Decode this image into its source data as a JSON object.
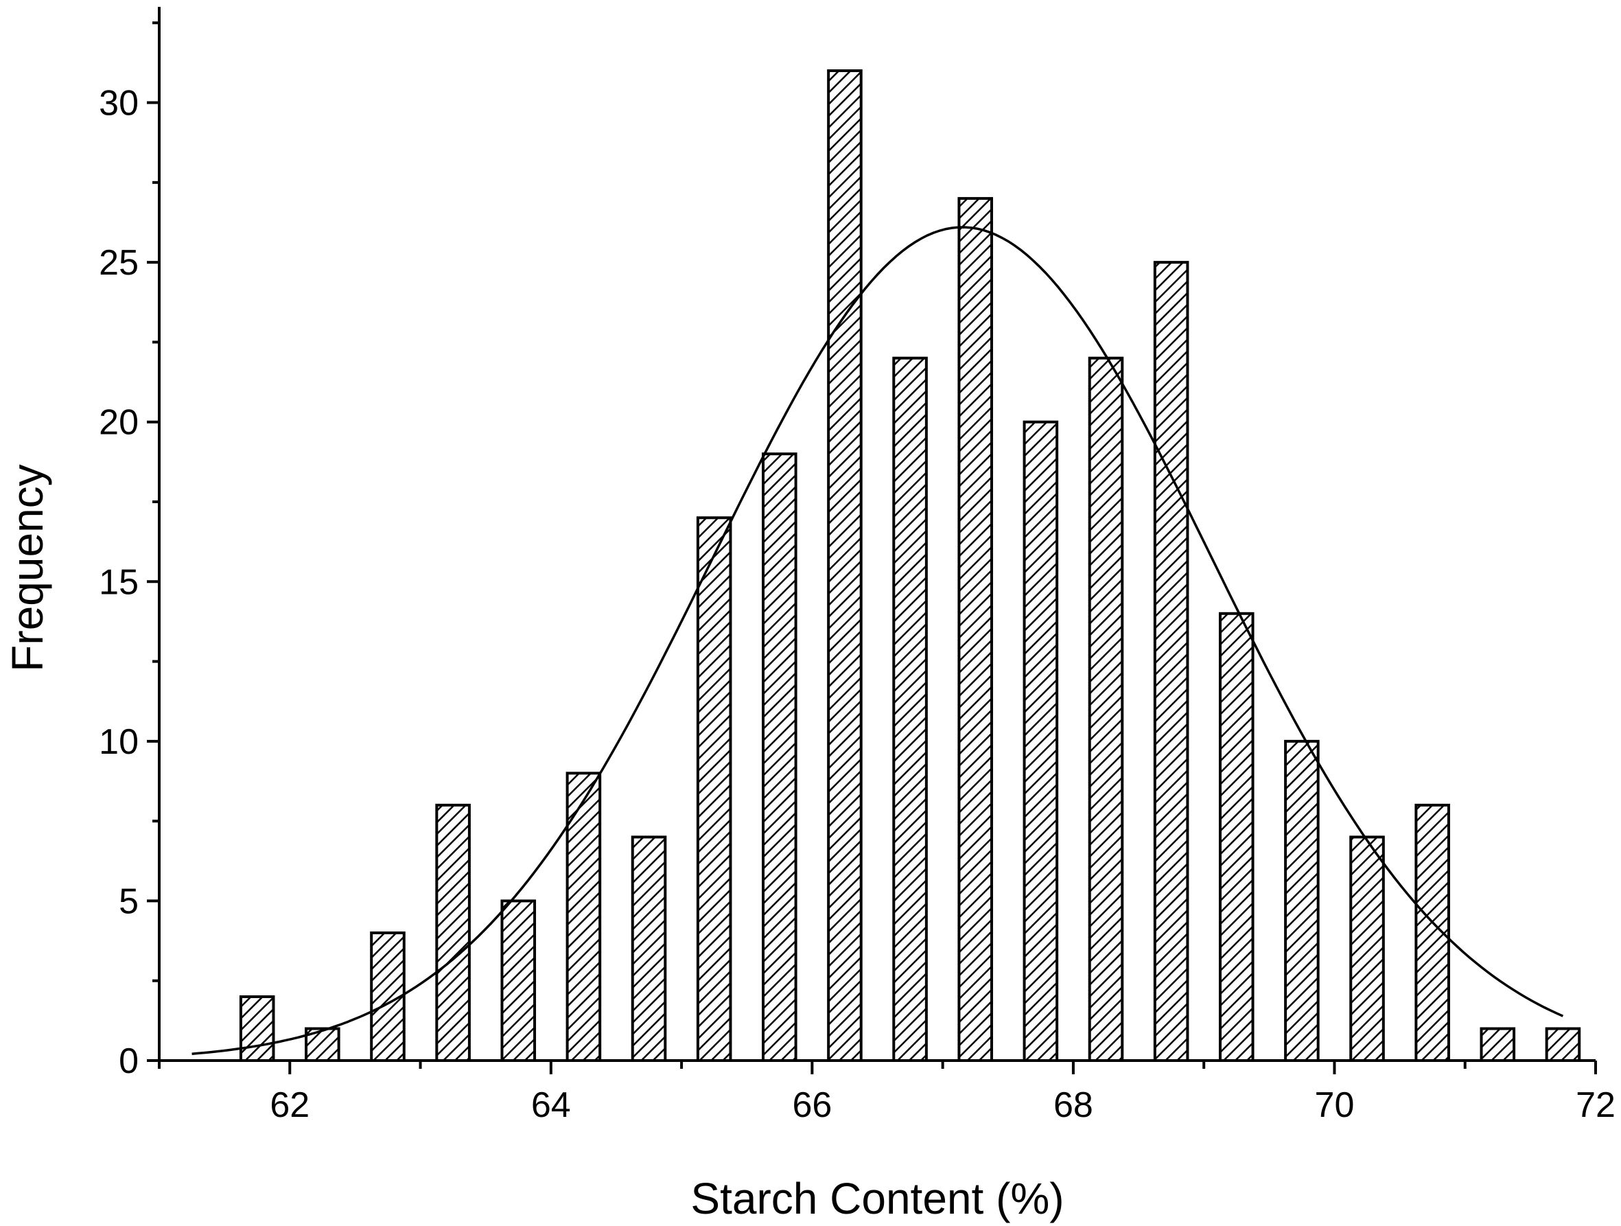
{
  "chart_data": {
    "type": "bar",
    "xlabel": "Starch Content (%)",
    "ylabel": "Frequency",
    "xlim": [
      61,
      72
    ],
    "ylim": [
      0,
      33
    ],
    "x_ticks": [
      62,
      64,
      66,
      68,
      70,
      72
    ],
    "y_ticks": [
      0,
      5,
      10,
      15,
      20,
      25,
      30
    ],
    "bar_pattern": "diagonal-hatch",
    "grid": false,
    "bars": [
      {
        "x": 61.75,
        "value": 2
      },
      {
        "x": 62.25,
        "value": 1
      },
      {
        "x": 62.75,
        "value": 4
      },
      {
        "x": 63.25,
        "value": 8
      },
      {
        "x": 63.75,
        "value": 5
      },
      {
        "x": 64.25,
        "value": 9
      },
      {
        "x": 64.75,
        "value": 7
      },
      {
        "x": 65.25,
        "value": 17
      },
      {
        "x": 65.75,
        "value": 19
      },
      {
        "x": 66.25,
        "value": 31
      },
      {
        "x": 66.75,
        "value": 22
      },
      {
        "x": 67.25,
        "value": 27
      },
      {
        "x": 67.75,
        "value": 20
      },
      {
        "x": 68.25,
        "value": 22
      },
      {
        "x": 68.75,
        "value": 25
      },
      {
        "x": 69.25,
        "value": 14
      },
      {
        "x": 69.75,
        "value": 10
      },
      {
        "x": 70.25,
        "value": 7
      },
      {
        "x": 70.75,
        "value": 8
      },
      {
        "x": 71.25,
        "value": 1
      },
      {
        "x": 71.75,
        "value": 1
      }
    ],
    "fit_curve": {
      "kind": "normal",
      "mean": 67.15,
      "sd": 1.9,
      "peak": 26.1,
      "x_range": [
        61.25,
        71.75
      ]
    }
  }
}
